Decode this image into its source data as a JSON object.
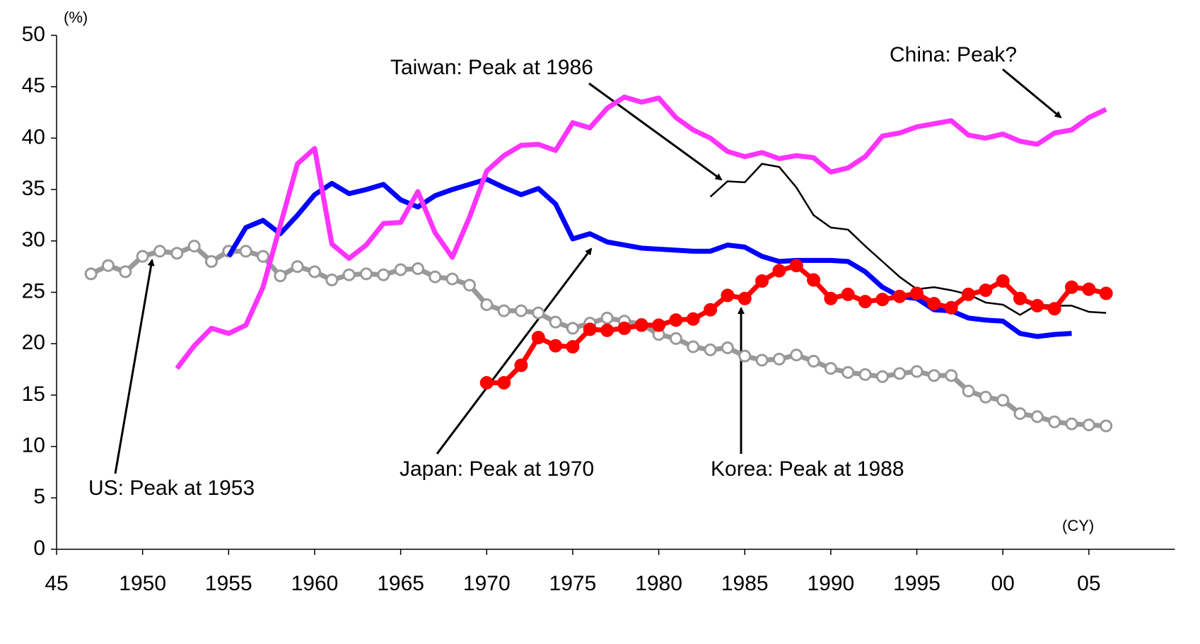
{
  "chart_data": {
    "type": "line",
    "y_unit": "(%)",
    "x_unit": "(CY)",
    "annotations": [
      "US: Peak at 1953",
      "Japan: Peak at 1970",
      "Korea: Peak at 1988",
      "Taiwan: Peak at 1986",
      "China: Peak?"
    ],
    "x": [
      1947,
      1948,
      1949,
      1950,
      1951,
      1952,
      1953,
      1954,
      1955,
      1956,
      1957,
      1958,
      1959,
      1960,
      1961,
      1962,
      1963,
      1964,
      1965,
      1966,
      1967,
      1968,
      1969,
      1970,
      1971,
      1972,
      1973,
      1974,
      1975,
      1976,
      1977,
      1978,
      1979,
      1980,
      1981,
      1982,
      1983,
      1984,
      1985,
      1986,
      1987,
      1988,
      1989,
      1990,
      1991,
      1992,
      1993,
      1994,
      1995,
      1996,
      1997,
      1998,
      1999,
      2000,
      2001,
      2002,
      2003,
      2004,
      2005,
      2006
    ],
    "series": [
      {
        "color": "#999999",
        "markers": "open",
        "values": [
          26.8,
          27.6,
          27.0,
          28.5,
          29.0,
          28.8,
          29.5,
          28.0,
          29.0,
          29.0,
          28.5,
          26.6,
          27.5,
          27.0,
          26.2,
          26.7,
          26.8,
          26.7,
          27.2,
          27.3,
          26.5,
          26.3,
          25.7,
          23.8,
          23.2,
          23.2,
          23.0,
          22.1,
          21.5,
          22.0,
          22.5,
          22.2,
          21.9,
          20.9,
          20.5,
          19.7,
          19.4,
          19.6,
          18.8,
          18.4,
          18.5,
          18.9,
          18.3,
          17.6,
          17.2,
          17.0,
          16.8,
          17.1,
          17.3,
          16.9,
          16.9,
          15.4,
          14.8,
          14.5,
          13.2,
          12.9,
          12.4,
          12.2,
          12.1,
          12.0
        ]
      },
      {
        "color": "#0000ff",
        "markers": "none",
        "values": [
          null,
          null,
          null,
          null,
          null,
          null,
          null,
          null,
          28.5,
          31.3,
          32.0,
          30.7,
          32.5,
          34.5,
          35.6,
          34.6,
          35.0,
          35.5,
          34.0,
          33.3,
          34.4,
          35.0,
          35.5,
          36.0,
          35.2,
          34.5,
          35.1,
          33.6,
          30.2,
          30.7,
          29.9,
          29.6,
          29.3,
          29.2,
          29.1,
          29.0,
          29.0,
          29.6,
          29.4,
          28.5,
          28.0,
          28.1,
          28.1,
          28.1,
          28.0,
          27.0,
          25.5,
          24.6,
          24.4,
          23.3,
          23.2,
          22.5,
          22.3,
          22.2,
          21.0,
          20.7,
          20.9,
          21.0,
          null,
          null
        ]
      },
      {
        "color": "#ff33ff",
        "markers": "none",
        "values": [
          null,
          null,
          null,
          null,
          null,
          17.6,
          19.8,
          21.5,
          21.0,
          21.8,
          25.5,
          31.5,
          37.5,
          39.0,
          29.7,
          28.3,
          29.6,
          31.7,
          31.8,
          34.8,
          30.8,
          28.4,
          32.3,
          36.8,
          38.3,
          39.3,
          39.4,
          38.8,
          41.5,
          41.0,
          42.9,
          44.0,
          43.5,
          43.9,
          42.0,
          40.8,
          40.0,
          38.7,
          38.2,
          38.6,
          38.0,
          38.3,
          38.1,
          36.7,
          37.1,
          38.2,
          40.2,
          40.5,
          41.1,
          41.4,
          41.7,
          40.3,
          40.0,
          40.4,
          39.7,
          39.4,
          40.5,
          40.8,
          42.0,
          42.8
        ]
      },
      {
        "color": "#000000",
        "markers": "none",
        "thin": true,
        "values": [
          null,
          null,
          null,
          null,
          null,
          null,
          null,
          null,
          null,
          null,
          null,
          null,
          null,
          null,
          null,
          null,
          null,
          null,
          null,
          null,
          null,
          null,
          null,
          null,
          null,
          null,
          null,
          null,
          null,
          null,
          null,
          null,
          null,
          null,
          null,
          null,
          34.3,
          35.8,
          35.7,
          37.5,
          37.2,
          35.2,
          32.5,
          31.3,
          31.1,
          29.5,
          28.0,
          26.5,
          25.3,
          25.5,
          25.2,
          24.8,
          24.0,
          23.8,
          22.8,
          23.8,
          23.7,
          23.7,
          23.1,
          23.0
        ]
      },
      {
        "color": "#ff0000",
        "markers": "filled",
        "values": [
          null,
          null,
          null,
          null,
          null,
          null,
          null,
          null,
          null,
          null,
          null,
          null,
          null,
          null,
          null,
          null,
          null,
          null,
          null,
          null,
          null,
          null,
          null,
          16.2,
          16.2,
          17.9,
          20.6,
          19.8,
          19.7,
          21.4,
          21.3,
          21.5,
          21.8,
          21.8,
          22.3,
          22.4,
          23.3,
          24.7,
          24.4,
          26.1,
          27.1,
          27.6,
          26.2,
          24.4,
          24.8,
          24.1,
          24.3,
          24.6,
          24.9,
          23.9,
          23.5,
          24.8,
          25.2,
          26.1,
          24.4,
          23.7,
          23.4,
          25.5,
          25.3,
          24.9
        ]
      }
    ],
    "xlim": [
      1945,
      2010
    ],
    "ylim": [
      0,
      50
    ],
    "xticks": [
      {
        "value": 1945,
        "label": "45"
      },
      1950,
      1955,
      1960,
      1965,
      1970,
      1975,
      1980,
      1985,
      1990,
      1995,
      {
        "value": 2000,
        "label": "00"
      },
      {
        "value": 2005,
        "label": "05"
      }
    ],
    "yticks": [
      0,
      5,
      10,
      15,
      20,
      25,
      30,
      35,
      40,
      45,
      50
    ]
  }
}
